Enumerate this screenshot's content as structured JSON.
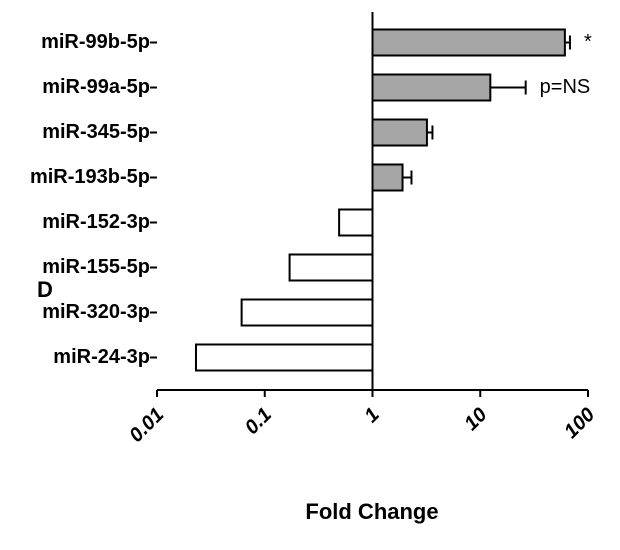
{
  "chart_data": {
    "type": "hbar",
    "categories": [
      "miR-99b-5p",
      "miR-99a-5p",
      "miR-345-5p",
      "miR-193b-5p",
      "miR-152-3p",
      "miR-155-5p",
      "miR-320-3p",
      "miR-24-3p"
    ],
    "values": [
      61,
      12.4,
      3.2,
      1.9,
      0.49,
      0.17,
      0.061,
      0.023
    ],
    "errors": [
      7,
      14,
      0.4,
      0.4,
      null,
      null,
      null,
      null
    ],
    "colors": [
      "#a6a6a6",
      "#a6a6a6",
      "#a6a6a6",
      "#a6a6a6",
      "#ffffff",
      "#ffffff",
      "#ffffff",
      "#ffffff"
    ],
    "value_annotations": [
      "*",
      "p=NS",
      null,
      null,
      null,
      null,
      null,
      null
    ],
    "xlabel": "Fold Change",
    "panel_label": "D",
    "log_x": true,
    "xlim": [
      0.01,
      100
    ],
    "xticks": [
      0.01,
      0.1,
      1,
      10,
      100
    ]
  }
}
